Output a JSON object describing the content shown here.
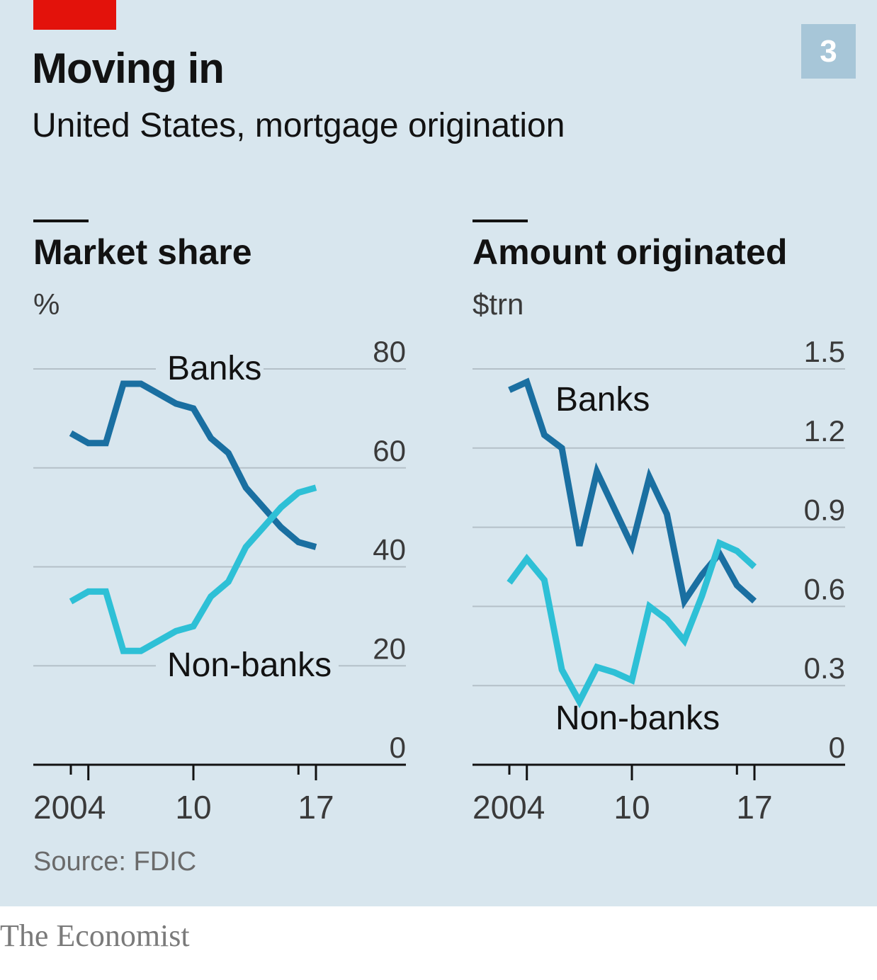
{
  "header": {
    "title": "Moving in",
    "subtitle": "United States, mortgage origination",
    "chart_number": "3"
  },
  "footer": {
    "source": "Source: FDIC",
    "brand": "The Economist"
  },
  "colors": {
    "background": "#d8e6ee",
    "banks": "#1a6fa1",
    "nonbanks": "#2ec0d6",
    "accent_red": "#e3120b",
    "badge": "#a7c6d8"
  },
  "chart_data": [
    {
      "type": "line",
      "title": "Market share",
      "ylabel": "%",
      "x": [
        2003,
        2004,
        2005,
        2006,
        2007,
        2008,
        2009,
        2010,
        2011,
        2012,
        2013,
        2014,
        2015,
        2016,
        2017
      ],
      "x_tick_labels": [
        "2004",
        "10",
        "17"
      ],
      "ylim": [
        0,
        80
      ],
      "y_ticks": [
        0,
        20,
        40,
        60,
        80
      ],
      "grid": true,
      "series": [
        {
          "name": "Banks",
          "label": "Banks",
          "color_key": "banks",
          "values": [
            67,
            65,
            65,
            77,
            77,
            75,
            73,
            72,
            66,
            63,
            56,
            52,
            48,
            45,
            44
          ]
        },
        {
          "name": "Non-banks",
          "label": "Non-banks",
          "color_key": "nonbanks",
          "values": [
            33,
            35,
            35,
            23,
            23,
            25,
            27,
            28,
            34,
            37,
            44,
            48,
            52,
            55,
            56
          ]
        }
      ]
    },
    {
      "type": "line",
      "title": "Amount originated",
      "ylabel": "$trn",
      "x": [
        2003,
        2004,
        2005,
        2006,
        2007,
        2008,
        2009,
        2010,
        2011,
        2012,
        2013,
        2014,
        2015,
        2016,
        2017
      ],
      "x_tick_labels": [
        "2004",
        "10",
        "17"
      ],
      "ylim": [
        0,
        1.5
      ],
      "y_ticks": [
        0,
        0.3,
        0.6,
        0.9,
        1.2,
        1.5
      ],
      "y_tick_labels": [
        "0",
        "0.3",
        "0.6",
        "0.9",
        "1.2",
        "1.5"
      ],
      "grid": true,
      "series": [
        {
          "name": "Banks",
          "label": "Banks",
          "color_key": "banks",
          "values": [
            1.42,
            1.45,
            1.25,
            1.2,
            0.83,
            1.11,
            0.97,
            0.83,
            1.09,
            0.95,
            0.62,
            0.72,
            0.8,
            0.68,
            0.62
          ]
        },
        {
          "name": "Non-banks",
          "label": "Non-banks",
          "color_key": "nonbanks",
          "values": [
            0.69,
            0.78,
            0.7,
            0.36,
            0.24,
            0.37,
            0.35,
            0.32,
            0.6,
            0.55,
            0.47,
            0.64,
            0.84,
            0.81,
            0.75
          ]
        }
      ]
    }
  ]
}
